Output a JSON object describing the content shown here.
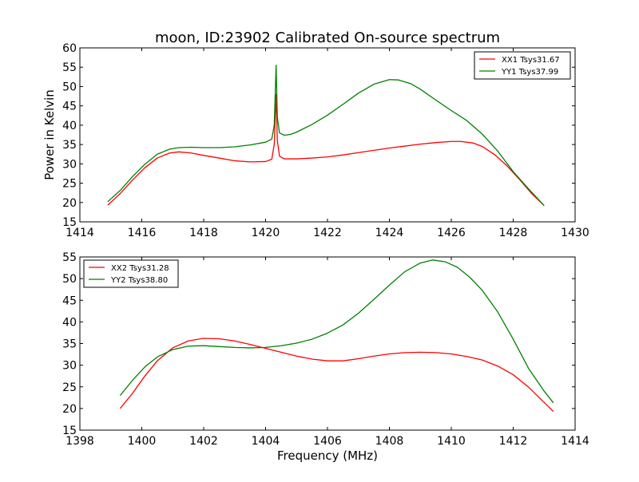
{
  "chart_data": [
    {
      "type": "line",
      "title": "moon, ID:23902 Calibrated On-source spectrum",
      "xlabel": "",
      "ylabel": "Power in Kelvin",
      "xlim": [
        1414,
        1430
      ],
      "ylim": [
        15,
        60
      ],
      "xticks": [
        "1414",
        "1416",
        "1418",
        "1420",
        "1422",
        "1424",
        "1426",
        "1428",
        "1430"
      ],
      "yticks": [
        "15",
        "20",
        "25",
        "30",
        "35",
        "40",
        "45",
        "50",
        "55",
        "60"
      ],
      "legend_position": "top-right",
      "series": [
        {
          "name": "XX1 Tsys31.67",
          "color": "#ff0000",
          "points": [
            [
              1414.9,
              19.3
            ],
            [
              1415.3,
              22.3
            ],
            [
              1415.7,
              25.8
            ],
            [
              1416.1,
              29
            ],
            [
              1416.5,
              31.5
            ],
            [
              1416.9,
              32.8
            ],
            [
              1417.2,
              33.1
            ],
            [
              1417.6,
              32.8
            ],
            [
              1418.0,
              32.2
            ],
            [
              1418.5,
              31.5
            ],
            [
              1419.0,
              30.8
            ],
            [
              1419.5,
              30.5
            ],
            [
              1420.0,
              30.6
            ],
            [
              1420.2,
              31.2
            ],
            [
              1420.28,
              35
            ],
            [
              1420.34,
              48
            ],
            [
              1420.38,
              36
            ],
            [
              1420.45,
              32
            ],
            [
              1420.6,
              31.3
            ],
            [
              1421.0,
              31.3
            ],
            [
              1421.5,
              31.5
            ],
            [
              1422.0,
              31.8
            ],
            [
              1422.5,
              32.3
            ],
            [
              1423.0,
              32.9
            ],
            [
              1423.5,
              33.5
            ],
            [
              1424.0,
              34.1
            ],
            [
              1424.5,
              34.6
            ],
            [
              1425.0,
              35.1
            ],
            [
              1425.5,
              35.5
            ],
            [
              1426.0,
              35.8
            ],
            [
              1426.3,
              35.8
            ],
            [
              1426.7,
              35.4
            ],
            [
              1427.0,
              34.5
            ],
            [
              1427.4,
              32.4
            ],
            [
              1427.8,
              29.5
            ],
            [
              1428.2,
              26.0
            ],
            [
              1428.6,
              22.3
            ],
            [
              1429.0,
              19.2
            ]
          ]
        },
        {
          "name": "YY1 Tsys37.99",
          "color": "#008000",
          "points": [
            [
              1414.9,
              20.2
            ],
            [
              1415.3,
              23.1
            ],
            [
              1415.7,
              26.7
            ],
            [
              1416.1,
              29.9
            ],
            [
              1416.5,
              32.5
            ],
            [
              1416.9,
              33.8
            ],
            [
              1417.2,
              34.2
            ],
            [
              1417.6,
              34.3
            ],
            [
              1418.0,
              34.2
            ],
            [
              1418.5,
              34.2
            ],
            [
              1419.0,
              34.4
            ],
            [
              1419.5,
              34.9
            ],
            [
              1420.0,
              35.6
            ],
            [
              1420.2,
              36.4
            ],
            [
              1420.28,
              40
            ],
            [
              1420.34,
              55.5
            ],
            [
              1420.38,
              42
            ],
            [
              1420.45,
              38
            ],
            [
              1420.6,
              37.4
            ],
            [
              1420.8,
              37.6
            ],
            [
              1421.0,
              38.2
            ],
            [
              1421.5,
              40.2
            ],
            [
              1422.0,
              42.6
            ],
            [
              1422.5,
              45.4
            ],
            [
              1423.0,
              48.3
            ],
            [
              1423.5,
              50.6
            ],
            [
              1424.0,
              51.8
            ],
            [
              1424.3,
              51.7
            ],
            [
              1424.7,
              50.7
            ],
            [
              1425.0,
              49.3
            ],
            [
              1425.5,
              46.5
            ],
            [
              1426.0,
              43.8
            ],
            [
              1426.5,
              41.2
            ],
            [
              1427.0,
              37.7
            ],
            [
              1427.5,
              33.3
            ],
            [
              1428.0,
              28.0
            ],
            [
              1428.5,
              23.5
            ],
            [
              1429.0,
              19.2
            ]
          ]
        }
      ]
    },
    {
      "type": "line",
      "title": "",
      "xlabel": "Frequency (MHz)",
      "ylabel": "",
      "xlim": [
        1398,
        1414
      ],
      "ylim": [
        15,
        55
      ],
      "xticks": [
        "1398",
        "1400",
        "1402",
        "1404",
        "1406",
        "1408",
        "1410",
        "1412",
        "1414"
      ],
      "yticks": [
        "15",
        "20",
        "25",
        "30",
        "35",
        "40",
        "45",
        "50",
        "55"
      ],
      "legend_position": "top-left",
      "series": [
        {
          "name": "XX2 Tsys31.28",
          "color": "#ff0000",
          "points": [
            [
              1399.3,
              20
            ],
            [
              1399.7,
              23.5
            ],
            [
              1400.1,
              27.5
            ],
            [
              1400.5,
              31
            ],
            [
              1401.0,
              34
            ],
            [
              1401.5,
              35.6
            ],
            [
              1402.0,
              36.2
            ],
            [
              1402.5,
              36.1
            ],
            [
              1403.0,
              35.6
            ],
            [
              1403.5,
              34.8
            ],
            [
              1404.0,
              33.9
            ],
            [
              1404.5,
              33.0
            ],
            [
              1405.0,
              32.1
            ],
            [
              1405.5,
              31.4
            ],
            [
              1406.0,
              31.0
            ],
            [
              1406.5,
              31.0
            ],
            [
              1407.0,
              31.5
            ],
            [
              1407.5,
              32.1
            ],
            [
              1408.0,
              32.6
            ],
            [
              1408.5,
              32.9
            ],
            [
              1409.0,
              33.0
            ],
            [
              1409.5,
              32.9
            ],
            [
              1410.0,
              32.6
            ],
            [
              1410.5,
              32.0
            ],
            [
              1411.0,
              31.2
            ],
            [
              1411.5,
              29.8
            ],
            [
              1412.0,
              27.8
            ],
            [
              1412.5,
              24.9
            ],
            [
              1413.0,
              21.4
            ],
            [
              1413.3,
              19.3
            ]
          ]
        },
        {
          "name": "YY2 Tsys38.80",
          "color": "#008000",
          "points": [
            [
              1399.3,
              23
            ],
            [
              1399.7,
              26.5
            ],
            [
              1400.1,
              29.6
            ],
            [
              1400.5,
              31.9
            ],
            [
              1401.0,
              33.6
            ],
            [
              1401.5,
              34.4
            ],
            [
              1402.0,
              34.5
            ],
            [
              1402.5,
              34.3
            ],
            [
              1403.0,
              34.1
            ],
            [
              1403.5,
              34.0
            ],
            [
              1404.0,
              34.1
            ],
            [
              1404.5,
              34.5
            ],
            [
              1405.0,
              35.1
            ],
            [
              1405.5,
              36.0
            ],
            [
              1406.0,
              37.4
            ],
            [
              1406.5,
              39.3
            ],
            [
              1407.0,
              42.0
            ],
            [
              1407.5,
              45.2
            ],
            [
              1408.0,
              48.5
            ],
            [
              1408.5,
              51.6
            ],
            [
              1409.0,
              53.6
            ],
            [
              1409.4,
              54.3
            ],
            [
              1409.8,
              53.9
            ],
            [
              1410.2,
              52.6
            ],
            [
              1410.6,
              50.3
            ],
            [
              1411.0,
              47.3
            ],
            [
              1411.5,
              42.3
            ],
            [
              1412.0,
              36.0
            ],
            [
              1412.5,
              29.2
            ],
            [
              1413.0,
              24.0
            ],
            [
              1413.3,
              21.3
            ]
          ]
        }
      ]
    }
  ]
}
